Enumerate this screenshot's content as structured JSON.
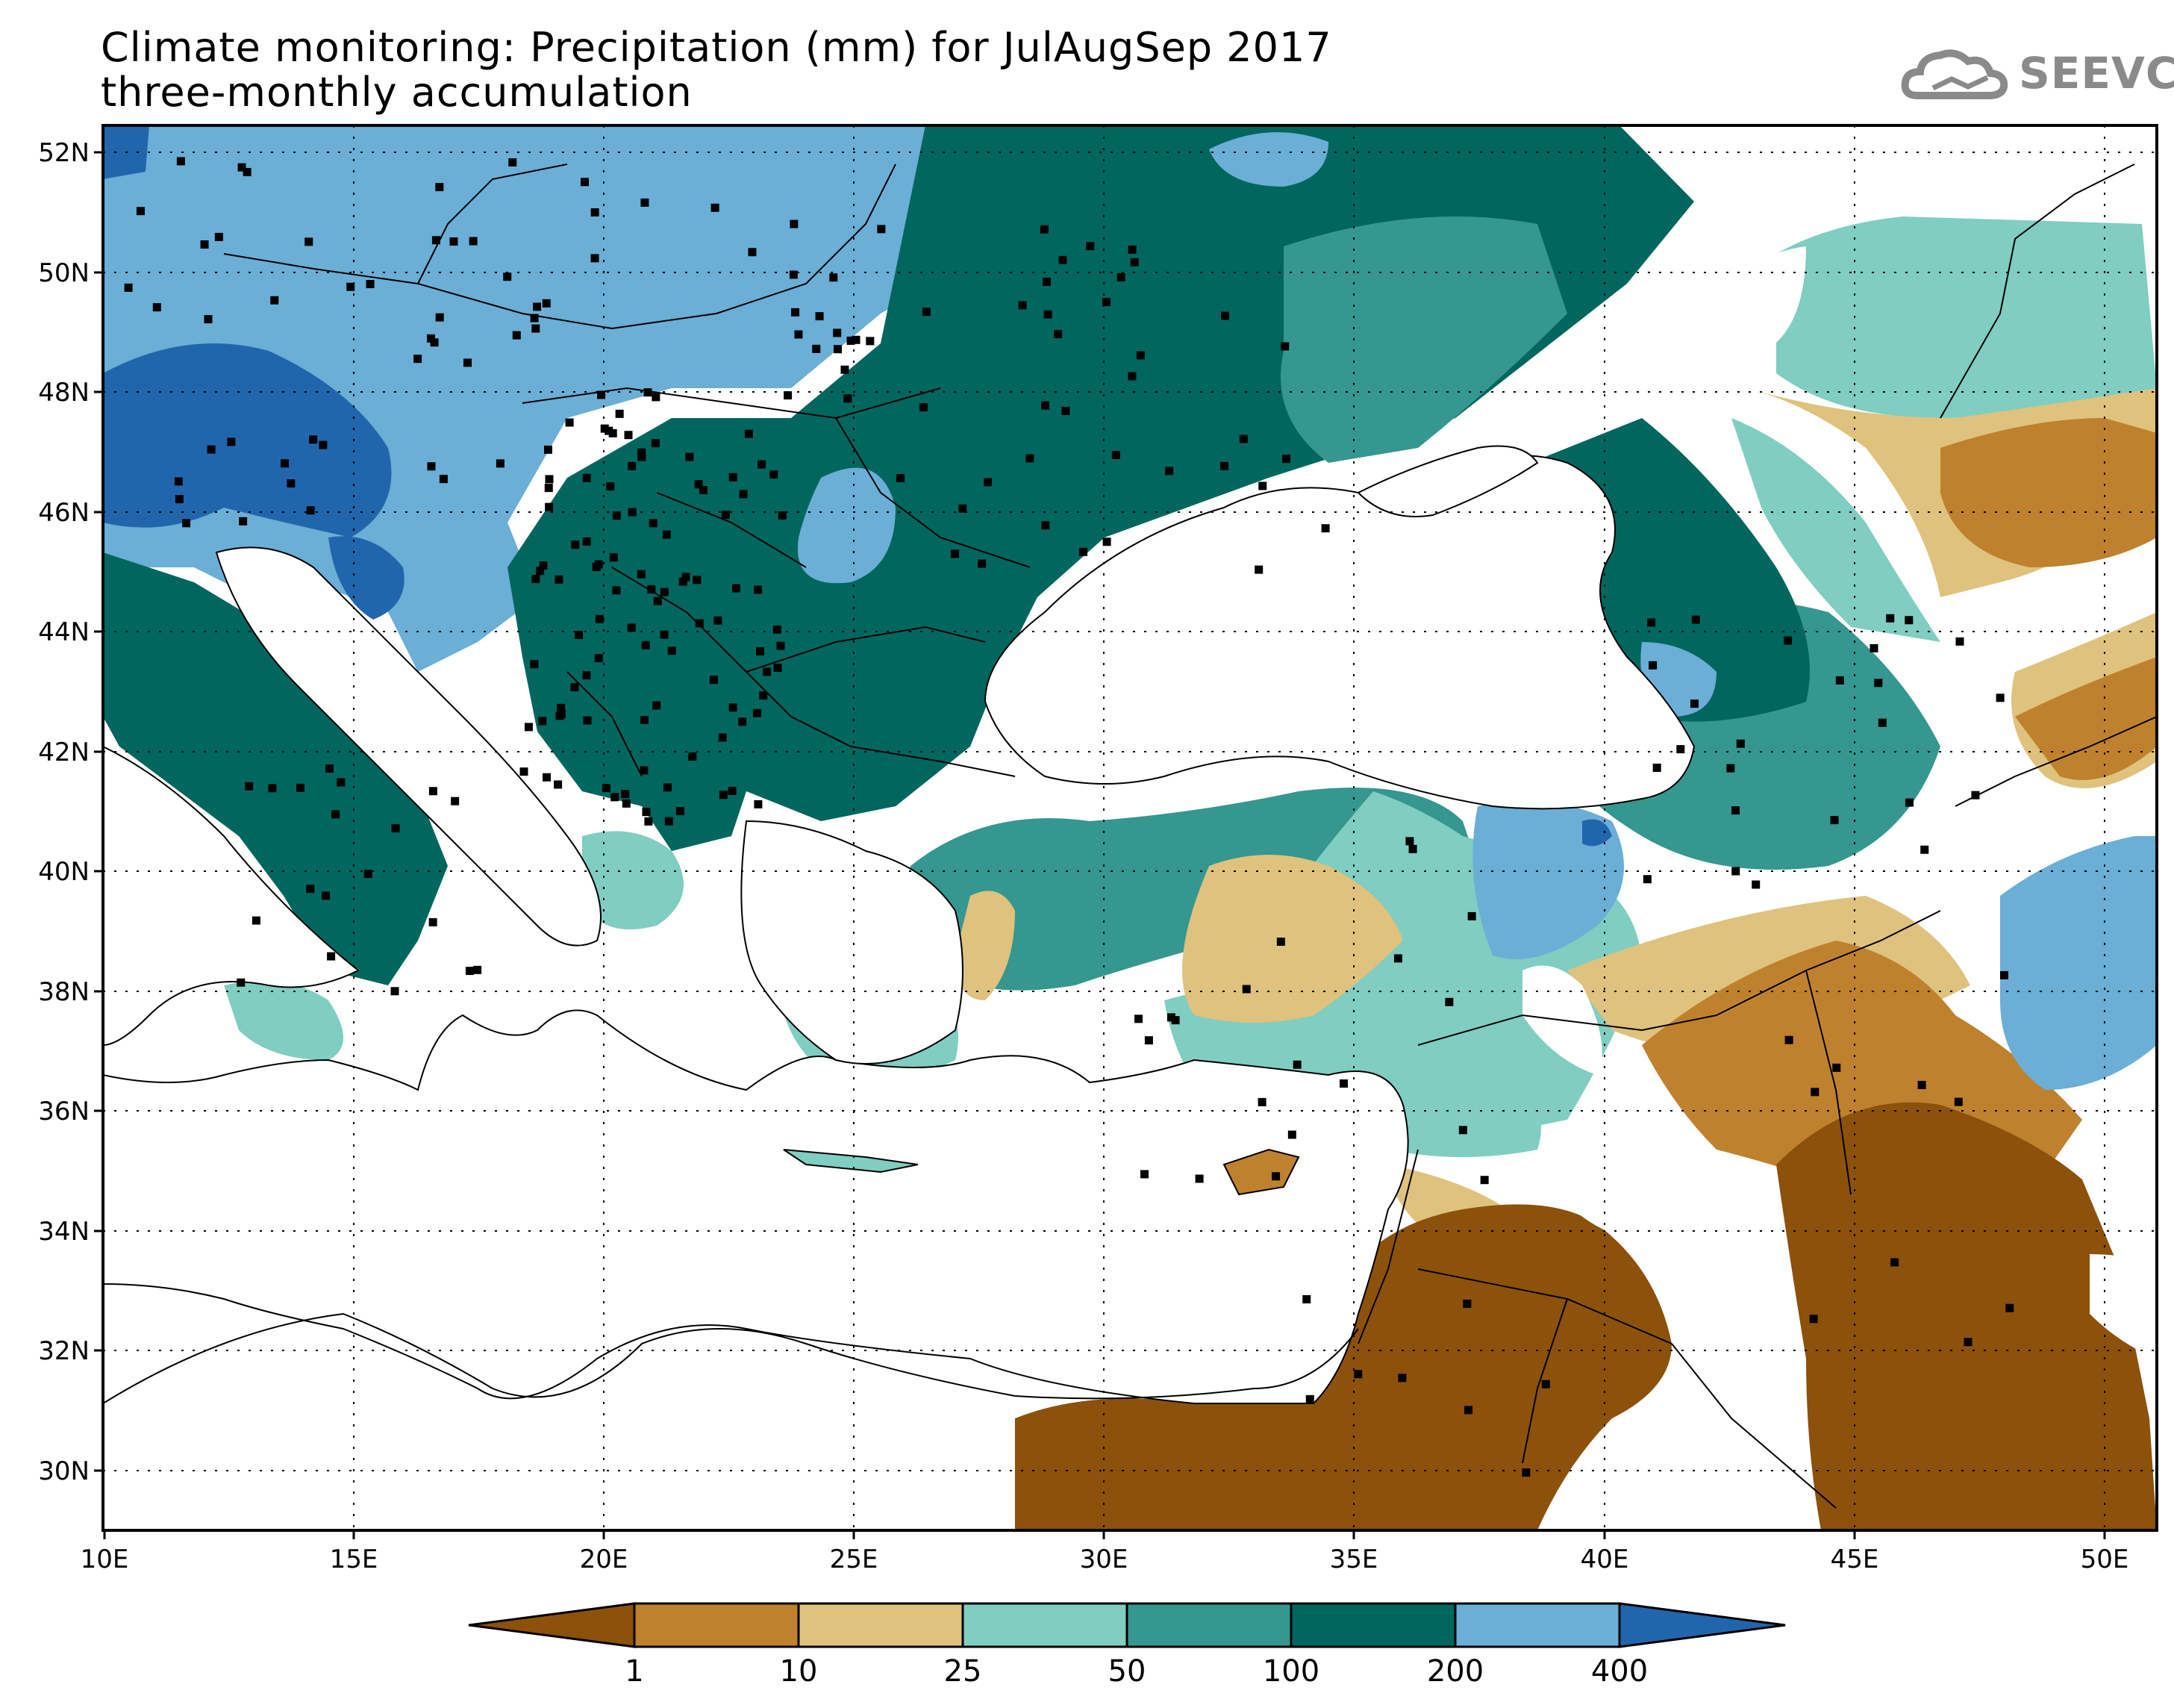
{
  "title": {
    "line1": "Climate monitoring: Precipitation (mm) for JulAugSep 2017",
    "line2": "three-monthly accumulation"
  },
  "logo": {
    "text": "SEEVCCC",
    "icon": "cloud-icon"
  },
  "axes": {
    "lat_labels": [
      "52N",
      "50N",
      "48N",
      "46N",
      "44N",
      "42N",
      "40N",
      "38N",
      "36N",
      "34N",
      "32N",
      "30N"
    ],
    "lon_labels": [
      "10E",
      "15E",
      "20E",
      "25E",
      "30E",
      "35E",
      "40E",
      "45E",
      "50E"
    ]
  },
  "legend": {
    "breaks": [
      "1",
      "10",
      "25",
      "50",
      "100",
      "200",
      "400"
    ],
    "colors": [
      "#8c510a",
      "#bf812d",
      "#dfc27d",
      "#80cdc1",
      "#35978f",
      "#01665e",
      "#6baed6",
      "#2166ac"
    ]
  },
  "colors": {
    "land": "#ffffff",
    "frame": "#000000"
  }
}
